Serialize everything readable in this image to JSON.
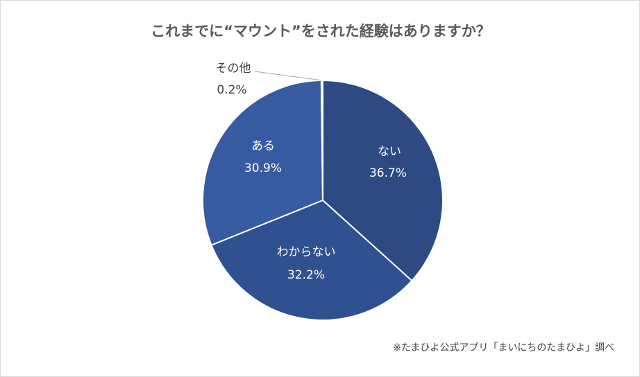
{
  "chart_data": {
    "type": "pie",
    "title": "これまでに“マウント”をされた経験はありますか？",
    "start": "top",
    "direction": "clockwise",
    "slices": [
      {
        "label": "ない",
        "value": 36.7,
        "value_text": "36.7%",
        "color": "#2d4b82"
      },
      {
        "label": "わからない",
        "value": 32.2,
        "value_text": "32.2%",
        "color": "#30518f"
      },
      {
        "label": "ある",
        "value": 30.9,
        "value_text": "30.9%",
        "color": "#375ba1"
      },
      {
        "label": "その他",
        "value": 0.2,
        "value_text": "0.2%",
        "color": "#375ba1"
      }
    ],
    "note": "※たまひよ公式アプリ「まいにちのたまひよ」調べ"
  }
}
